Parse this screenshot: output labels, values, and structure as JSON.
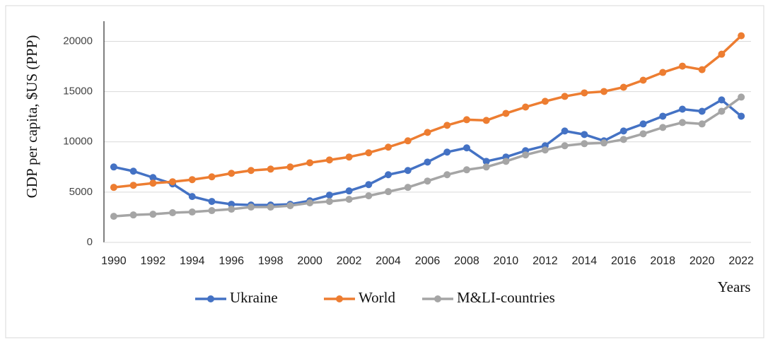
{
  "chart_data": {
    "type": "line",
    "y_label": "GDP per capita, $US (PPP)",
    "x_label": "Years",
    "categories": [
      "1990",
      null,
      "1992",
      null,
      "1994",
      null,
      "1996",
      null,
      "1998",
      null,
      "2000",
      null,
      "2002",
      null,
      "2004",
      null,
      "2006",
      null,
      "2008",
      null,
      "2010",
      null,
      "2012",
      null,
      "2014",
      null,
      "2016",
      null,
      "2018",
      null,
      "2020",
      null,
      "2022"
    ],
    "series": [
      {
        "name": "Ukraine",
        "color": "#4472c4",
        "values": [
          7500,
          7080,
          6450,
          5820,
          4560,
          4070,
          3790,
          3720,
          3720,
          3790,
          4140,
          4700,
          5120,
          5750,
          6730,
          7150,
          7990,
          8980,
          9400,
          8060,
          8490,
          9120,
          9610,
          11080,
          10730,
          10100,
          11080,
          11780,
          12550,
          13250,
          13040,
          14170,
          12550
        ]
      },
      {
        "name": "World",
        "color": "#ed7d31",
        "values": [
          5470,
          5680,
          5890,
          6030,
          6240,
          6520,
          6870,
          7150,
          7290,
          7500,
          7920,
          8200,
          8490,
          8910,
          9470,
          10100,
          10940,
          11640,
          12200,
          12130,
          12830,
          13460,
          14030,
          14520,
          14870,
          15010,
          15430,
          16130,
          16900,
          17530,
          17180,
          18720,
          20550
        ]
      },
      {
        "name": "M&LI-countries",
        "color": "#a5a5a5",
        "values": [
          2590,
          2730,
          2800,
          2950,
          3020,
          3160,
          3300,
          3510,
          3510,
          3650,
          3930,
          4070,
          4280,
          4630,
          5050,
          5470,
          6100,
          6730,
          7220,
          7500,
          8060,
          8700,
          9190,
          9610,
          9820,
          9890,
          10240,
          10800,
          11430,
          11920,
          11780,
          13040,
          14450
        ]
      }
    ],
    "ylim": [
      0,
      22000
    ],
    "yticks": [
      0,
      5000,
      10000,
      15000,
      20000
    ],
    "grid": true,
    "legend": "bottom"
  }
}
